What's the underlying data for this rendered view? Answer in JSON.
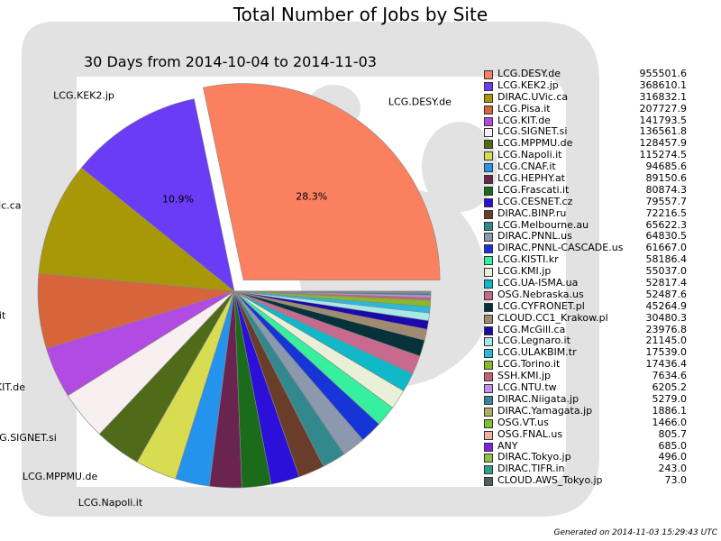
{
  "title": "Total Number of Jobs by Site",
  "subtitle": "30 Days from 2014-10-04 to 2014-11-03",
  "footer": "Generated on 2014-11-03 15:29:43 UTC",
  "chart_data": {
    "type": "pie",
    "title": "Total Number of Jobs by Site",
    "subtitle": "30 Days from 2014-10-04 to 2014-11-03",
    "legend_position": "right",
    "exploded_slice": "LCG.DESY.de",
    "slices": [
      {
        "label": "LCG.DESY.de",
        "value": 955501.6,
        "color": "#fa8060",
        "pct_label": "28.3%",
        "outer_label": "LCG.DESY.de"
      },
      {
        "label": "LCG.KEK2.jp",
        "value": 368610.1,
        "color": "#6a3cf5",
        "pct_label": "10.9%",
        "outer_label": "LCG.KEK2.jp"
      },
      {
        "label": "DIRAC.UVic.ca",
        "value": 316832.1,
        "color": "#a89808",
        "outer_label": "DIRAC.UVic.ca"
      },
      {
        "label": "LCG.Pisa.it",
        "value": 207727.9,
        "color": "#d8643a",
        "outer_label": "LCG.Pisa.it"
      },
      {
        "label": "LCG.KIT.de",
        "value": 141793.5,
        "color": "#b24be2",
        "outer_label": "LCG.KIT.de"
      },
      {
        "label": "LCG.SIGNET.si",
        "value": 136561.8,
        "color": "#f8f0f0",
        "outer_label": "LCG.SIGNET.si"
      },
      {
        "label": "LCG.MPPMU.de",
        "value": 128457.9,
        "color": "#4f6a18",
        "outer_label": "LCG.MPPMU.de"
      },
      {
        "label": "LCG.Napoli.it",
        "value": 115274.5,
        "color": "#d8dc50",
        "outer_label": "LCG.Napoli.it"
      },
      {
        "label": "LCG.CNAF.it",
        "value": 94685.6,
        "color": "#2493ee"
      },
      {
        "label": "LCG.HEPHY.at",
        "value": 89150.6,
        "color": "#6a2450"
      },
      {
        "label": "LCG.Frascati.it",
        "value": 80874.3,
        "color": "#1a6c1a"
      },
      {
        "label": "LCG.CESNET.cz",
        "value": 79557.7,
        "color": "#2a10d8"
      },
      {
        "label": "DIRAC.BINP.ru",
        "value": 72216.5,
        "color": "#6a3c2a"
      },
      {
        "label": "LCG.Melbourne.au",
        "value": 65622.3,
        "color": "#33888e"
      },
      {
        "label": "DIRAC.PNNL.us",
        "value": 64830.5,
        "color": "#8c98ae"
      },
      {
        "label": "DIRAC.PNNL-CASCADE.us",
        "value": 61667.0,
        "color": "#1535d6"
      },
      {
        "label": "LCG.KISTI.kr",
        "value": 58186.4,
        "color": "#36f0a0"
      },
      {
        "label": "LCG.KMI.jp",
        "value": 55037.0,
        "color": "#e8f0d8"
      },
      {
        "label": "LCG.UA-ISMA.ua",
        "value": 52817.4,
        "color": "#10b8c8"
      },
      {
        "label": "OSG.Nebraska.us",
        "value": 52487.6,
        "color": "#c86a8e"
      },
      {
        "label": "LCG.CYFRONET.pl",
        "value": 45264.9,
        "color": "#06323a"
      },
      {
        "label": "CLOUD.CC1_Krakow.pl",
        "value": 30480.3,
        "color": "#a08a70"
      },
      {
        "label": "LCG.McGill.ca",
        "value": 23976.8,
        "color": "#1c0aa8"
      },
      {
        "label": "LCG.Legnaro.it",
        "value": 21145.0,
        "color": "#a8e8e8"
      },
      {
        "label": "LCG.ULAKBIM.tr",
        "value": 17539.0,
        "color": "#2cb8d8"
      },
      {
        "label": "LCG.Torino.it",
        "value": 17436.4,
        "color": "#8ab828"
      },
      {
        "label": "SSH.KMI.jp",
        "value": 7634.6,
        "color": "#c86070"
      },
      {
        "label": "LCG.NTU.tw",
        "value": 6205.2,
        "color": "#c090f0"
      },
      {
        "label": "DIRAC.Niigata.jp",
        "value": 5279.0,
        "color": "#4080a0"
      },
      {
        "label": "DIRAC.Yamagata.jp",
        "value": 1886.1,
        "color": "#b0b060"
      },
      {
        "label": "OSG.VT.us",
        "value": 1466.0,
        "color": "#80c030"
      },
      {
        "label": "OSG.FNAL.us",
        "value": 805.7,
        "color": "#f0b0a0"
      },
      {
        "label": "ANY",
        "value": 685.0,
        "color": "#8020e0"
      },
      {
        "label": "DIRAC.Tokyo.jp",
        "value": 496.0,
        "color": "#90c040"
      },
      {
        "label": "DIRAC.TIFR.in",
        "value": 243.0,
        "color": "#30a090"
      },
      {
        "label": "CLOUD.AWS_Tokyo.jp",
        "value": 73.0,
        "color": "#506060"
      }
    ],
    "legend_values": [
      "955501.6",
      "368610.1",
      "316832.1",
      "207727.9",
      "141793.5",
      "136561.8",
      "128457.9",
      "115274.5",
      "94685.6",
      "89150.6",
      "80874.3",
      "79557.7",
      "72216.5",
      "65622.3",
      "64830.5",
      "61667.0",
      "58186.4",
      "55037.0",
      "52817.4",
      "52487.6",
      "45264.9",
      "30480.3",
      "23976.8",
      "21145.0",
      "17539.0",
      "17436.4",
      "7634.6",
      "6205.2",
      "5279.0",
      "1886.1",
      "1466.0",
      "805.7",
      "685.0",
      "496.0",
      "243.0",
      "73.0"
    ]
  }
}
